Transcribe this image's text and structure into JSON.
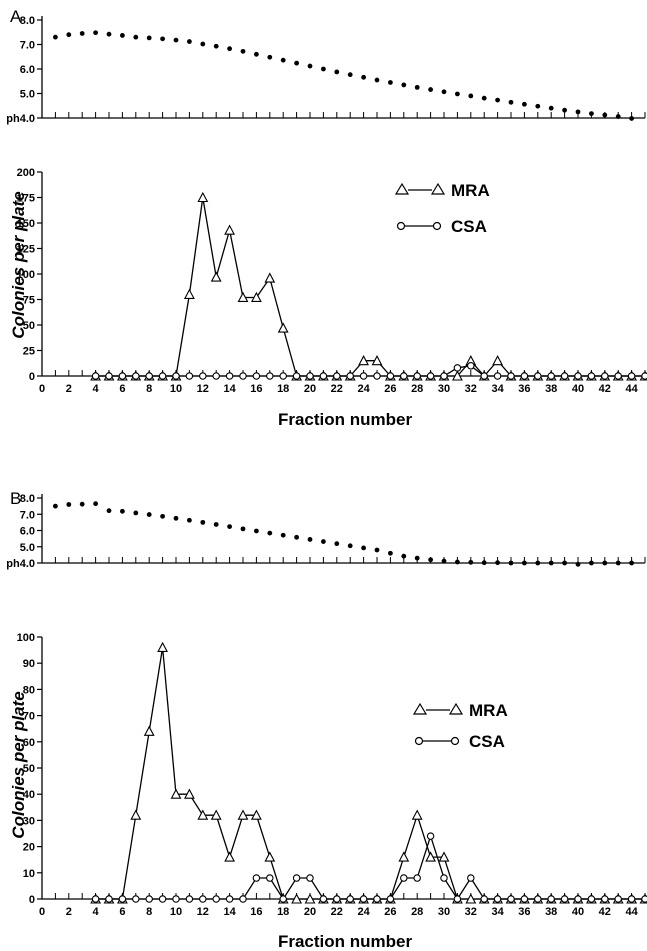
{
  "chart_data": [
    {
      "panel": "A",
      "type": "scatter",
      "title": "",
      "xlabel": "",
      "ylabel": "",
      "ytick_labels": [
        "ph4.0",
        "5.0",
        "6.0",
        "7.0",
        "8.0"
      ],
      "ylim": [
        4.0,
        8.0
      ],
      "xlim": [
        0,
        45
      ],
      "series": [
        {
          "values": [
            [
              1,
              7.3
            ],
            [
              2,
              7.4
            ],
            [
              3,
              7.45
            ],
            [
              4,
              7.48
            ],
            [
              5,
              7.42
            ],
            [
              6,
              7.37
            ],
            [
              7,
              7.3
            ],
            [
              8,
              7.27
            ],
            [
              9,
              7.23
            ],
            [
              10,
              7.18
            ],
            [
              11,
              7.12
            ],
            [
              12,
              7.02
            ],
            [
              13,
              6.93
            ],
            [
              14,
              6.83
            ],
            [
              15,
              6.72
            ],
            [
              16,
              6.6
            ],
            [
              17,
              6.48
            ],
            [
              18,
              6.36
            ],
            [
              19,
              6.24
            ],
            [
              20,
              6.12
            ],
            [
              21,
              6.0
            ],
            [
              22,
              5.88
            ],
            [
              23,
              5.77
            ],
            [
              24,
              5.66
            ],
            [
              25,
              5.55
            ],
            [
              26,
              5.45
            ],
            [
              27,
              5.35
            ],
            [
              28,
              5.25
            ],
            [
              29,
              5.16
            ],
            [
              30,
              5.07
            ],
            [
              31,
              4.98
            ],
            [
              32,
              4.9
            ],
            [
              33,
              4.81
            ],
            [
              34,
              4.73
            ],
            [
              35,
              4.64
            ],
            [
              36,
              4.56
            ],
            [
              37,
              4.48
            ],
            [
              38,
              4.4
            ],
            [
              39,
              4.32
            ],
            [
              40,
              4.25
            ],
            [
              41,
              4.18
            ],
            [
              42,
              4.12
            ],
            [
              43,
              4.06
            ],
            [
              44,
              3.98
            ]
          ]
        }
      ]
    },
    {
      "panel": "A",
      "type": "line",
      "title": "",
      "xlabel": "Fraction number",
      "ylabel": "Colonies per plate",
      "xlim": [
        0,
        45
      ],
      "ylim": [
        0,
        200
      ],
      "xticks": [
        0,
        2,
        4,
        6,
        8,
        10,
        12,
        14,
        16,
        18,
        20,
        22,
        24,
        26,
        28,
        30,
        32,
        34,
        36,
        38,
        40,
        42,
        44
      ],
      "yticks": [
        0,
        25,
        50,
        75,
        100,
        125,
        150,
        175,
        200
      ],
      "legend_position": "top-right",
      "series": [
        {
          "name": "MRA",
          "marker": "triangle",
          "x": [
            4,
            5,
            6,
            7,
            8,
            9,
            10,
            11,
            12,
            13,
            14,
            15,
            16,
            17,
            18,
            19,
            20,
            21,
            22,
            23,
            24,
            25,
            26,
            27,
            28,
            29,
            30,
            31,
            32,
            33,
            34,
            35,
            36,
            37,
            38,
            39,
            40,
            41,
            42,
            43,
            44,
            45
          ],
          "values": [
            0,
            0,
            0,
            0,
            0,
            0,
            0,
            80,
            175,
            97,
            143,
            77,
            77,
            96,
            47,
            0,
            0,
            0,
            0,
            0,
            15,
            15,
            0,
            0,
            0,
            0,
            0,
            0,
            15,
            0,
            15,
            0,
            0,
            0,
            0,
            0,
            0,
            0,
            0,
            0,
            0,
            0
          ]
        },
        {
          "name": "CSA",
          "marker": "circle",
          "x": [
            4,
            5,
            6,
            7,
            8,
            9,
            10,
            11,
            12,
            13,
            14,
            15,
            16,
            17,
            18,
            19,
            20,
            21,
            22,
            23,
            24,
            25,
            26,
            27,
            28,
            29,
            30,
            31,
            32,
            33,
            34,
            35,
            36,
            37,
            38,
            39,
            40,
            41,
            42,
            43,
            44,
            45
          ],
          "values": [
            0,
            0,
            0,
            0,
            0,
            0,
            0,
            0,
            0,
            0,
            0,
            0,
            0,
            0,
            0,
            0,
            0,
            0,
            0,
            0,
            0,
            0,
            0,
            0,
            0,
            0,
            0,
            8,
            10,
            0,
            0,
            0,
            0,
            0,
            0,
            0,
            0,
            0,
            0,
            0,
            0,
            0
          ]
        }
      ]
    },
    {
      "panel": "B",
      "type": "scatter",
      "title": "",
      "xlabel": "",
      "ylabel": "",
      "ytick_labels": [
        "ph4.0",
        "5.0",
        "6.0",
        "7.0",
        "8.0"
      ],
      "ylim": [
        4.0,
        8.0
      ],
      "xlim": [
        0,
        45
      ],
      "series": [
        {
          "values": [
            [
              1,
              7.5
            ],
            [
              2,
              7.6
            ],
            [
              3,
              7.62
            ],
            [
              4,
              7.65
            ],
            [
              5,
              7.22
            ],
            [
              6,
              7.18
            ],
            [
              7,
              7.08
            ],
            [
              8,
              6.98
            ],
            [
              9,
              6.87
            ],
            [
              10,
              6.75
            ],
            [
              11,
              6.63
            ],
            [
              12,
              6.5
            ],
            [
              13,
              6.37
            ],
            [
              14,
              6.24
            ],
            [
              15,
              6.1
            ],
            [
              16,
              5.97
            ],
            [
              17,
              5.84
            ],
            [
              18,
              5.71
            ],
            [
              19,
              5.58
            ],
            [
              20,
              5.45
            ],
            [
              21,
              5.32
            ],
            [
              22,
              5.19
            ],
            [
              23,
              5.06
            ],
            [
              24,
              4.93
            ],
            [
              25,
              4.8
            ],
            [
              26,
              4.6
            ],
            [
              27,
              4.42
            ],
            [
              28,
              4.3
            ],
            [
              29,
              4.2
            ],
            [
              30,
              4.12
            ],
            [
              31,
              4.06
            ],
            [
              32,
              4.04
            ],
            [
              33,
              4.02
            ],
            [
              34,
              4.02
            ],
            [
              35,
              4.0
            ],
            [
              36,
              4.0
            ],
            [
              37,
              4.0
            ],
            [
              38,
              4.0
            ],
            [
              39,
              4.0
            ],
            [
              40,
              3.92
            ],
            [
              41,
              4.0
            ],
            [
              42,
              4.0
            ],
            [
              43,
              4.0
            ],
            [
              44,
              4.0
            ]
          ]
        }
      ]
    },
    {
      "panel": "B",
      "type": "line",
      "title": "",
      "xlabel": "Fraction number",
      "ylabel": "Colonies per plate",
      "xlim": [
        0,
        45
      ],
      "ylim": [
        0,
        100
      ],
      "xticks": [
        0,
        2,
        4,
        6,
        8,
        10,
        12,
        14,
        16,
        18,
        20,
        22,
        24,
        26,
        28,
        30,
        32,
        34,
        36,
        38,
        40,
        42,
        44
      ],
      "yticks": [
        0,
        10,
        20,
        30,
        40,
        50,
        60,
        70,
        80,
        90,
        100
      ],
      "legend_position": "right",
      "series": [
        {
          "name": "MRA",
          "marker": "triangle",
          "x": [
            4,
            5,
            6,
            7,
            8,
            9,
            10,
            11,
            12,
            13,
            14,
            15,
            16,
            17,
            18,
            19,
            20,
            21,
            22,
            23,
            24,
            25,
            26,
            27,
            28,
            29,
            30,
            31,
            32,
            33,
            34,
            35,
            36,
            37,
            38,
            39,
            40,
            41,
            42,
            43,
            44,
            45
          ],
          "values": [
            0,
            0,
            0,
            32,
            64,
            96,
            40,
            40,
            32,
            32,
            16,
            32,
            32,
            16,
            0,
            0,
            0,
            0,
            0,
            0,
            0,
            0,
            0,
            16,
            32,
            16,
            16,
            0,
            0,
            0,
            0,
            0,
            0,
            0,
            0,
            0,
            0,
            0,
            0,
            0,
            0,
            0
          ]
        },
        {
          "name": "CSA",
          "marker": "circle",
          "x": [
            4,
            5,
            6,
            7,
            8,
            9,
            10,
            11,
            12,
            13,
            14,
            15,
            16,
            17,
            18,
            19,
            20,
            21,
            22,
            23,
            24,
            25,
            26,
            27,
            28,
            29,
            30,
            31,
            32,
            33,
            34,
            35,
            36,
            37,
            38,
            39,
            40,
            41,
            42,
            43,
            44,
            45
          ],
          "values": [
            0,
            0,
            0,
            0,
            0,
            0,
            0,
            0,
            0,
            0,
            0,
            0,
            8,
            8,
            0,
            8,
            8,
            0,
            0,
            0,
            0,
            0,
            0,
            8,
            8,
            24,
            8,
            0,
            8,
            0,
            0,
            0,
            0,
            0,
            0,
            0,
            0,
            0,
            0,
            0,
            0,
            0
          ]
        }
      ]
    }
  ],
  "panels": {
    "a": "A",
    "b": "B"
  },
  "legend": {
    "mra": "MRA",
    "csa": "CSA"
  },
  "axis": {
    "xlabel": "Fraction number",
    "ylabel": "Colonies per plate"
  }
}
